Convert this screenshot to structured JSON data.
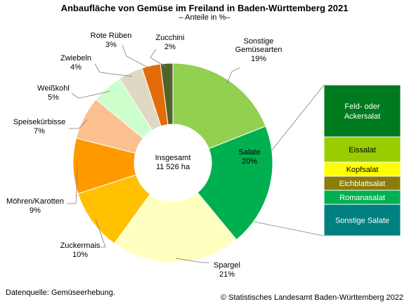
{
  "chart_data": {
    "type": "pie",
    "title": "Anbaufläche von Gemüse im Freiland in Baden-Württemberg 2021",
    "subtitle": "– Anteile in %–",
    "center_label": [
      "Insgesamt",
      "11 526 ha"
    ],
    "slices": [
      {
        "name": "Sonstige Gemüsearten",
        "value": 19,
        "label": "19%",
        "color": "#92d050"
      },
      {
        "name": "Salate",
        "value": 20,
        "label": "20%",
        "color": "#00b050"
      },
      {
        "name": "Spargel",
        "value": 21,
        "label": "21%",
        "color": "#ffffc0"
      },
      {
        "name": "Zuckermais",
        "value": 10,
        "label": "10%",
        "color": "#ffc000"
      },
      {
        "name": "Möhren/Karotten",
        "value": 9,
        "label": "9%",
        "color": "#ff9900"
      },
      {
        "name": "Speisekürbisse",
        "value": 7,
        "label": "7%",
        "color": "#fac090"
      },
      {
        "name": "Weißkohl",
        "value": 5,
        "label": "5%",
        "color": "#ccffcc"
      },
      {
        "name": "Zwiebeln",
        "value": 4,
        "label": "4%",
        "color": "#ddd9c3"
      },
      {
        "name": "Rote Rüben",
        "value": 3,
        "label": "3%",
        "color": "#e36c09"
      },
      {
        "name": "Zucchini",
        "value": 2,
        "label": "2%",
        "color": "#4f6228"
      }
    ],
    "breakdown": {
      "of": "Salate",
      "segments": [
        {
          "name": "Feld- oder Ackersalat",
          "color": "#007a1f",
          "text_color": "#ffffff"
        },
        {
          "name": "Eissalat",
          "color": "#9acd00",
          "text_color": "#000000"
        },
        {
          "name": "Kopfsalat",
          "color": "#ffff00",
          "text_color": "#000000"
        },
        {
          "name": "Eichblattsalat",
          "color": "#8b7d0a",
          "text_color": "#ffffff"
        },
        {
          "name": "Romanasalat",
          "color": "#00b050",
          "text_color": "#ffffff"
        },
        {
          "name": "Sonstige Salate",
          "color": "#008080",
          "text_color": "#ffffff"
        }
      ]
    }
  },
  "footer": {
    "source": "Datenquelle: Gemüseerhebung.",
    "copyright": "© Statistisches Landesamt Baden-Württemberg 2022"
  }
}
